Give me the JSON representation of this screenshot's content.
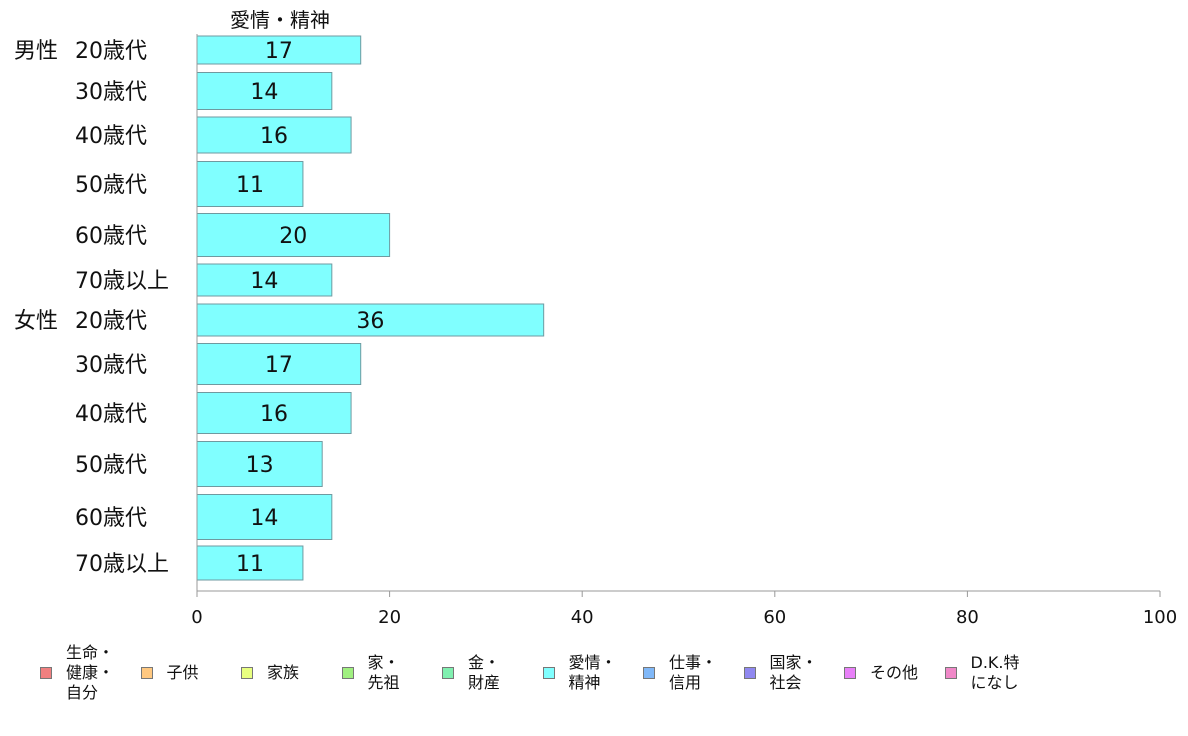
{
  "chart_data": {
    "type": "bar",
    "orientation": "horizontal",
    "title": "愛情・精神",
    "groups": [
      {
        "label": "男性",
        "categories": [
          "20歳代",
          "30歳代",
          "40歳代",
          "50歳代",
          "60歳代",
          "70歳以上"
        ],
        "values": [
          17,
          14,
          16,
          11,
          20,
          14
        ]
      },
      {
        "label": "女性",
        "categories": [
          "20歳代",
          "30歳代",
          "40歳代",
          "50歳代",
          "60歳代",
          "70歳以上"
        ],
        "values": [
          36,
          17,
          16,
          13,
          14,
          11
        ]
      }
    ],
    "xlim": [
      0,
      100
    ],
    "xticks": [
      "0",
      "20",
      "40",
      "60",
      "80",
      "100"
    ],
    "grid": false,
    "bar_color": "#80FFFF",
    "legend_position": "bottom",
    "legend": [
      {
        "label": "生命・\n健康・\n自分",
        "color": "#F08080"
      },
      {
        "label": "子供",
        "color": "#FFC880"
      },
      {
        "label": "家族",
        "color": "#E8FF80"
      },
      {
        "label": "家・\n先祖",
        "color": "#A0F080"
      },
      {
        "label": "金・\n財産",
        "color": "#80F0B0"
      },
      {
        "label": "愛情・\n精神",
        "color": "#80FFFF"
      },
      {
        "label": "仕事・\n信用",
        "color": "#80B8F8"
      },
      {
        "label": "国家・\n社会",
        "color": "#9088F0"
      },
      {
        "label": "その他",
        "color": "#E880F8"
      },
      {
        "label": "D.K.特\nになし",
        "color": "#F088C8"
      }
    ]
  }
}
